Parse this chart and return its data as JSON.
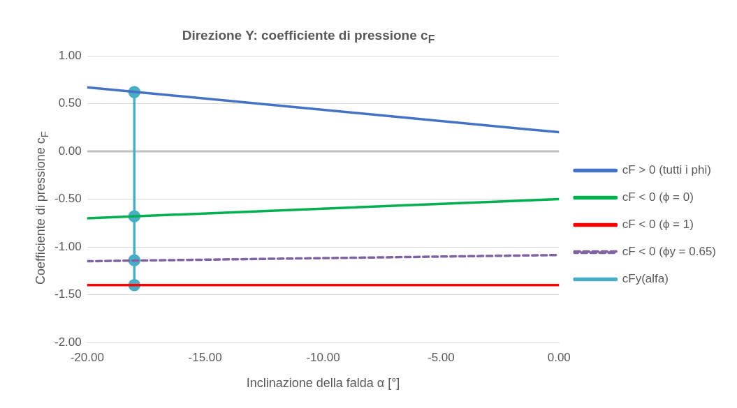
{
  "chart_data": {
    "type": "line",
    "title": "Direzione Y: coefficiente di pressione c$_{F}$",
    "xlabel": "Inclinazione della falda α [°]",
    "ylabel": "Coefficiente di pressione c$_{F}$",
    "xlim": [
      -20,
      0
    ],
    "xticks": [
      {
        "value": -20,
        "label": "-20.00"
      },
      {
        "value": -15,
        "label": "-15.00"
      },
      {
        "value": -10,
        "label": "-10.00"
      },
      {
        "value": -5,
        "label": "-5.00"
      },
      {
        "value": 0,
        "label": "0.00"
      }
    ],
    "ylim": [
      -2,
      1
    ],
    "yticks": [
      {
        "value": -2,
        "label": "-2.00"
      },
      {
        "value": -1.5,
        "label": "-1.50"
      },
      {
        "value": -1,
        "label": "-1.00"
      },
      {
        "value": -0.5,
        "label": "-0.50"
      },
      {
        "value": 0,
        "label": "0.00"
      },
      {
        "value": 0.5,
        "label": "0.50"
      },
      {
        "value": 1,
        "label": "1.00"
      }
    ],
    "grid": "y",
    "legend": "right",
    "marker": "none",
    "ref_lines": [
      {
        "axis": "y",
        "value": 0,
        "color": "#bfbfbf"
      }
    ],
    "series": [
      {
        "name": "cF > 0 (tutti i phi)",
        "color": "#4472c4",
        "x": [
          -20,
          0
        ],
        "values": [
          0.67,
          0.2
        ]
      },
      {
        "name": "cF < 0 (ϕ = 0)",
        "color": "#00b050",
        "x": [
          -20,
          0
        ],
        "values": [
          -0.7,
          -0.5
        ]
      },
      {
        "name": "cF < 0 (ϕ = 1)",
        "color": "#ff0000",
        "x": [
          -20,
          0
        ],
        "values": [
          -1.4,
          -1.4
        ]
      },
      {
        "name": "cF < 0 (ϕy = 0.65)",
        "color": "#8064a2",
        "x": [
          -20,
          0
        ],
        "values": [
          -1.15,
          -1.085
        ],
        "line_style": "dashed"
      },
      {
        "name": "cFy(alfa)",
        "color": "#4bacc6",
        "x": [
          -18,
          -18,
          -18,
          -18
        ],
        "values": [
          0.62,
          -0.68,
          -1.14,
          -1.4
        ],
        "marker": "circle"
      }
    ]
  }
}
